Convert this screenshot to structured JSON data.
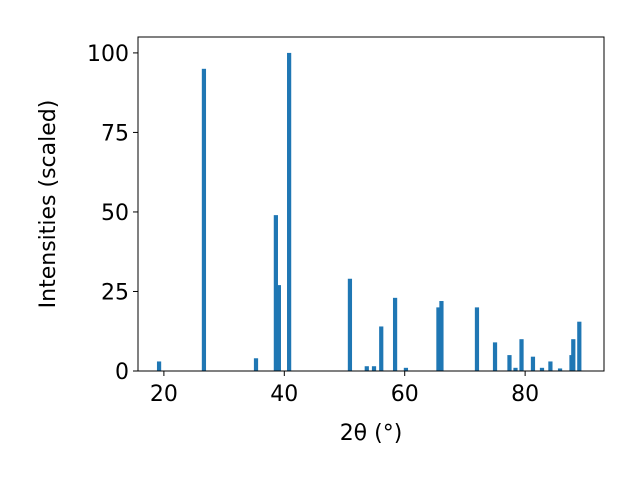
{
  "chart_data": {
    "type": "bar",
    "x_label": "2θ (°)",
    "y_label": "Intensities (scaled)",
    "color": "#1f77b4",
    "x": [
      19.2,
      26.65,
      35.3,
      38.6,
      39.1,
      40.8,
      50.9,
      53.7,
      54.9,
      56.1,
      58.4,
      60.2,
      65.6,
      66.1,
      72.0,
      75.0,
      77.4,
      78.4,
      79.4,
      81.3,
      82.8,
      84.2,
      85.8,
      87.7,
      88.0,
      89.0
    ],
    "values": [
      3,
      95,
      4,
      49,
      27,
      100,
      29,
      1.5,
      1.5,
      14,
      23,
      1,
      20,
      22,
      20,
      9,
      5,
      1,
      10,
      4.5,
      1,
      3,
      0.8,
      5,
      10,
      15.5
    ],
    "xlim": [
      15.7,
      93.1
    ],
    "ylim": [
      0,
      105
    ],
    "xticks": [
      20,
      40,
      60,
      80
    ],
    "yticks": [
      0,
      25,
      50,
      75,
      100
    ]
  }
}
